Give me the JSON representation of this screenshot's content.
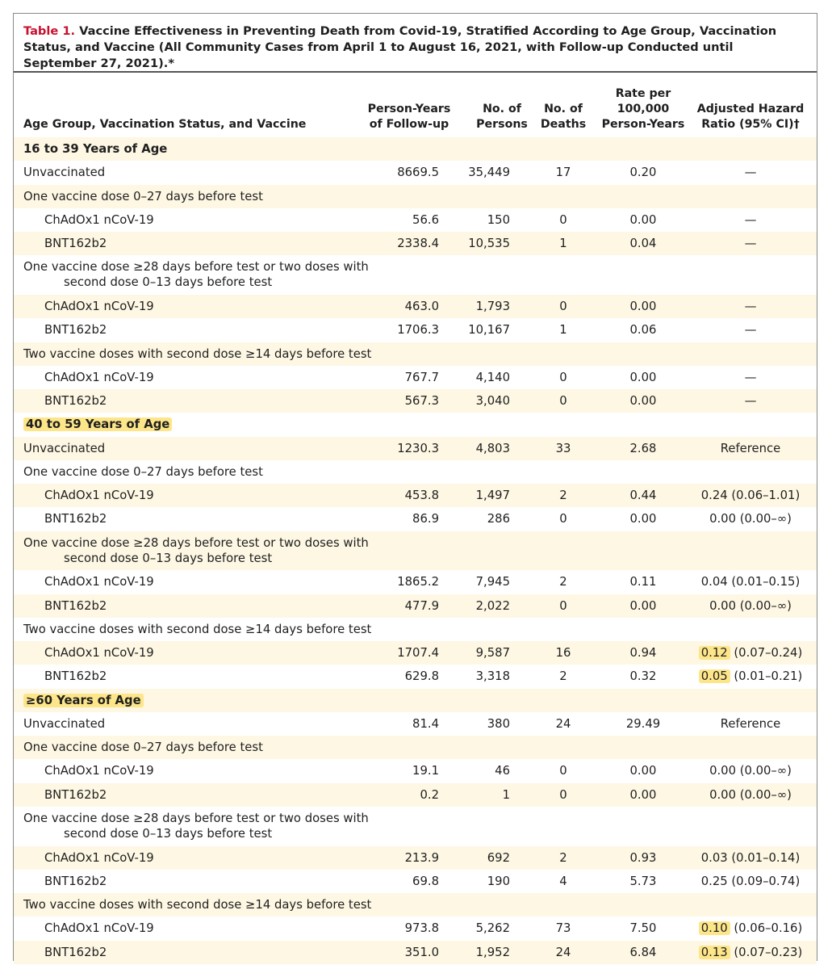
{
  "caption": {
    "label": "Table 1.",
    "text": "Vaccine Effectiveness in Preventing Death from Covid-19, Stratified According to Age Group, Vaccination Status, and Vaccine (All Community Cases from April 1 to August 16, 2021, with Follow-up Conducted until September 27, 2021).*"
  },
  "columns": {
    "label": "Age Group, Vaccination Status, and Vaccine",
    "py_line1": "Person-Years",
    "py_line2": "of Follow-up",
    "np_line1": "No. of",
    "np_line2": "Persons",
    "nd_line1": "No. of",
    "nd_line2": "Deaths",
    "rate_line1": "Rate per",
    "rate_line2": "100,000",
    "rate_line3": "Person-Years",
    "hr_line1": "Adjusted Hazard",
    "hr_line2": "Ratio (95% CI)†"
  },
  "groups": [
    {
      "title": "16 to 39 Years of Age",
      "unvaccinated": {
        "label": "Unvaccinated",
        "py": "8669.5",
        "np": "35,449",
        "nd": "17",
        "rate": "0.20",
        "hr": "—"
      },
      "sections": [
        {
          "title": "One vaccine dose 0–27 days before test",
          "title2": "",
          "rows": [
            {
              "label": "ChAdOx1 nCoV-19",
              "py": "56.6",
              "np": "150",
              "nd": "0",
              "rate": "0.00",
              "hr": "—"
            },
            {
              "label": "BNT162b2",
              "py": "2338.4",
              "np": "10,535",
              "nd": "1",
              "rate": "0.04",
              "hr": "—"
            }
          ]
        },
        {
          "title": "One vaccine dose ≥28 days before test or two doses with",
          "title2": "second dose 0–13 days before test",
          "rows": [
            {
              "label": "ChAdOx1 nCoV-19",
              "py": "463.0",
              "np": "1,793",
              "nd": "0",
              "rate": "0.00",
              "hr": "—"
            },
            {
              "label": "BNT162b2",
              "py": "1706.3",
              "np": "10,167",
              "nd": "1",
              "rate": "0.06",
              "hr": "—"
            }
          ]
        },
        {
          "title": "Two vaccine doses with second dose ≥14 days before test",
          "title2": "",
          "rows": [
            {
              "label": "ChAdOx1 nCoV-19",
              "py": "767.7",
              "np": "4,140",
              "nd": "0",
              "rate": "0.00",
              "hr": "—"
            },
            {
              "label": "BNT162b2",
              "py": "567.3",
              "np": "3,040",
              "nd": "0",
              "rate": "0.00",
              "hr": "—"
            }
          ]
        }
      ]
    },
    {
      "title": "40 to 59 Years of Age",
      "unvaccinated": {
        "label": "Unvaccinated",
        "py": "1230.3",
        "np": "4,803",
        "nd": "33",
        "rate": "2.68",
        "hr": "Reference"
      },
      "sections": [
        {
          "title": "One vaccine dose 0–27 days before test",
          "title2": "",
          "rows": [
            {
              "label": "ChAdOx1 nCoV-19",
              "py": "453.8",
              "np": "1,497",
              "nd": "2",
              "rate": "0.44",
              "hr": "0.24 (0.06–1.01)"
            },
            {
              "label": "BNT162b2",
              "py": "86.9",
              "np": "286",
              "nd": "0",
              "rate": "0.00",
              "hr": "0.00 (0.00–∞)"
            }
          ]
        },
        {
          "title": "One vaccine dose ≥28 days before test or two doses with",
          "title2": "second dose 0–13 days before test",
          "rows": [
            {
              "label": "ChAdOx1 nCoV-19",
              "py": "1865.2",
              "np": "7,945",
              "nd": "2",
              "rate": "0.11",
              "hr": "0.04 (0.01–0.15)"
            },
            {
              "label": "BNT162b2",
              "py": "477.9",
              "np": "2,022",
              "nd": "0",
              "rate": "0.00",
              "hr": "0.00 (0.00–∞)"
            }
          ]
        },
        {
          "title": "Two vaccine doses with second dose ≥14 days before test",
          "title2": "",
          "rows": [
            {
              "label": "ChAdOx1 nCoV-19",
              "py": "1707.4",
              "np": "9,587",
              "nd": "16",
              "rate": "0.94",
              "hr_main": "0.12",
              "hr_ci": " (0.07–0.24)"
            },
            {
              "label": "BNT162b2",
              "py": "629.8",
              "np": "3,318",
              "nd": "2",
              "rate": "0.32",
              "hr_main": "0.05",
              "hr_ci": " (0.01–0.21)"
            }
          ]
        }
      ]
    },
    {
      "title": "≥60 Years of Age",
      "unvaccinated": {
        "label": "Unvaccinated",
        "py": "81.4",
        "np": "380",
        "nd": "24",
        "rate": "29.49",
        "hr": "Reference"
      },
      "sections": [
        {
          "title": "One vaccine dose 0–27 days before test",
          "title2": "",
          "rows": [
            {
              "label": "ChAdOx1 nCoV-19",
              "py": "19.1",
              "np": "46",
              "nd": "0",
              "rate": "0.00",
              "hr": "0.00 (0.00–∞)"
            },
            {
              "label": "BNT162b2",
              "py": "0.2",
              "np": "1",
              "nd": "0",
              "rate": "0.00",
              "hr": "0.00 (0.00–∞)"
            }
          ]
        },
        {
          "title": "One vaccine dose ≥28 days before test or two doses with",
          "title2": "second dose 0–13 days before test",
          "rows": [
            {
              "label": "ChAdOx1 nCoV-19",
              "py": "213.9",
              "np": "692",
              "nd": "2",
              "rate": "0.93",
              "hr": "0.03 (0.01–0.14)"
            },
            {
              "label": "BNT162b2",
              "py": "69.8",
              "np": "190",
              "nd": "4",
              "rate": "5.73",
              "hr": "0.25 (0.09–0.74)"
            }
          ]
        },
        {
          "title": "Two vaccine doses with second dose ≥14 days before test",
          "title2": "",
          "rows": [
            {
              "label": "ChAdOx1 nCoV-19",
              "py": "973.8",
              "np": "5,262",
              "nd": "73",
              "rate": "7.50",
              "hr_main": "0.10",
              "hr_ci": " (0.06–0.16)"
            },
            {
              "label": "BNT162b2",
              "py": "351.0",
              "np": "1,952",
              "nd": "24",
              "rate": "6.84",
              "hr_main": "0.13",
              "hr_ci": " (0.07–0.23)"
            }
          ]
        }
      ]
    }
  ],
  "highlight_color": "#fde68a",
  "caption_label_color": "#c8102e",
  "shade_color": "#fdf7e3"
}
